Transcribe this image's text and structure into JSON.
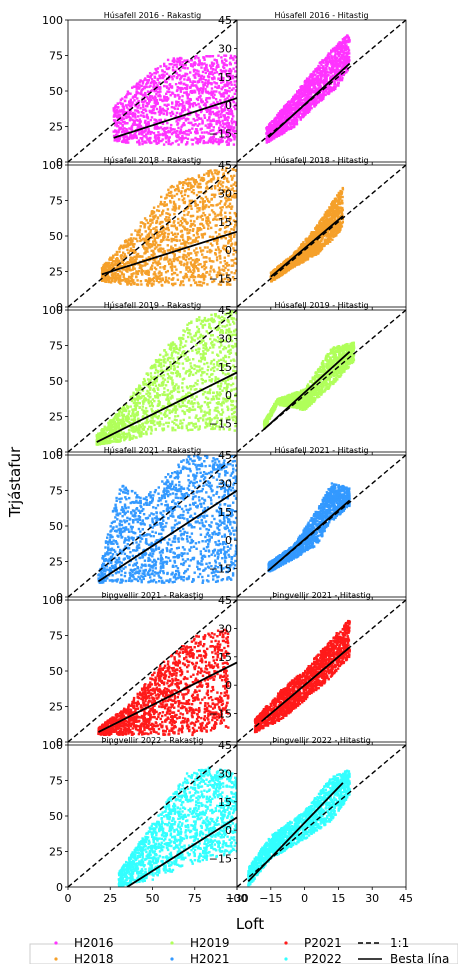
{
  "figure": {
    "ylabel": "Trjástafur",
    "xlabel": "Loft"
  },
  "legend": {
    "entries": [
      {
        "label": "H2016",
        "color": "#ff33ff",
        "kind": "dot"
      },
      {
        "label": "H2018",
        "color": "#f5a02a",
        "kind": "dot"
      },
      {
        "label": "H2019",
        "color": "#b0ff5a",
        "kind": "dot"
      },
      {
        "label": "H2021",
        "color": "#3399ff",
        "kind": "dot"
      },
      {
        "label": "P2021",
        "color": "#ff1a1a",
        "kind": "dot"
      },
      {
        "label": "P2022",
        "color": "#33ffff",
        "kind": "dot"
      },
      {
        "label": "1:1",
        "color": "#000000",
        "kind": "dashed"
      },
      {
        "label": "Besta lína",
        "color": "#000000",
        "kind": "solid"
      }
    ]
  },
  "chart_data": [
    {
      "type": "scatter",
      "title": "Húsafell 2016 - Rakastig",
      "color": "#ff33ff",
      "xlim": [
        0,
        100
      ],
      "ylim": [
        0,
        100
      ],
      "xticks": [
        0,
        25,
        50,
        75,
        100
      ],
      "yticks": [
        0,
        25,
        50,
        75,
        100
      ],
      "fit_line": {
        "x": [
          27,
          100
        ],
        "y": [
          17,
          45
        ]
      },
      "identity_line": true,
      "cloud": {
        "x_range": [
          27,
          100
        ],
        "y_band": [
          [
            27,
            15,
            40
          ],
          [
            40,
            12,
            55
          ],
          [
            60,
            12,
            73
          ],
          [
            80,
            12,
            75
          ],
          [
            100,
            12,
            75
          ]
        ]
      }
    },
    {
      "type": "scatter",
      "title": "Húsafell 2016 - Hitastig",
      "color": "#ff33ff",
      "xlim": [
        -30,
        45
      ],
      "ylim": [
        -30,
        45
      ],
      "xticks": [
        -30,
        -15,
        0,
        15,
        30,
        45
      ],
      "yticks": [
        -15,
        0,
        15,
        30,
        45
      ],
      "fit_line": {
        "x": [
          -16,
          20
        ],
        "y": [
          -17,
          22
        ]
      },
      "identity_line": true,
      "cloud": {
        "x_range": [
          -17,
          20
        ],
        "y_band": [
          [
            -17,
            -20,
            -12
          ],
          [
            -5,
            -12,
            5
          ],
          [
            5,
            0,
            20
          ],
          [
            15,
            10,
            33
          ],
          [
            20,
            20,
            38
          ]
        ]
      }
    },
    {
      "type": "scatter",
      "title": "Húsafell 2018 - Rakastig",
      "color": "#f5a02a",
      "xlim": [
        0,
        100
      ],
      "ylim": [
        0,
        100
      ],
      "xticks": [
        0,
        25,
        50,
        75,
        100
      ],
      "yticks": [
        0,
        25,
        50,
        75,
        100
      ],
      "fit_line": {
        "x": [
          20,
          100
        ],
        "y": [
          23,
          53
        ]
      },
      "identity_line": true,
      "cloud": {
        "x_range": [
          20,
          100
        ],
        "y_band": [
          [
            20,
            18,
            28
          ],
          [
            40,
            15,
            55
          ],
          [
            60,
            15,
            85
          ],
          [
            80,
            15,
            95
          ],
          [
            100,
            15,
            100
          ]
        ]
      }
    },
    {
      "type": "scatter",
      "title": "Húsafell 2018 - Hitastig",
      "color": "#f5a02a",
      "xlim": [
        -30,
        45
      ],
      "ylim": [
        -30,
        45
      ],
      "xticks": [
        -30,
        -15,
        0,
        15,
        30,
        45
      ],
      "yticks": [
        -15,
        0,
        15,
        30,
        45
      ],
      "fit_line": {
        "x": [
          -15,
          17
        ],
        "y": [
          -14,
          18
        ]
      },
      "identity_line": true,
      "cloud": {
        "x_range": [
          -15,
          17
        ],
        "y_band": [
          [
            -15,
            -17,
            -12
          ],
          [
            -5,
            -9,
            -2
          ],
          [
            5,
            -3,
            12
          ],
          [
            12,
            5,
            25
          ],
          [
            17,
            12,
            33
          ]
        ]
      }
    },
    {
      "type": "scatter",
      "title": "Húsafell 2019 - Rakastig",
      "color": "#b0ff5a",
      "xlim": [
        0,
        100
      ],
      "ylim": [
        0,
        100
      ],
      "xticks": [
        0,
        25,
        50,
        75,
        100
      ],
      "yticks": [
        0,
        25,
        50,
        75,
        100
      ],
      "fit_line": {
        "x": [
          17,
          100
        ],
        "y": [
          7,
          56
        ]
      },
      "identity_line": true,
      "cloud": {
        "x_range": [
          17,
          100
        ],
        "y_band": [
          [
            17,
            5,
            12
          ],
          [
            35,
            8,
            35
          ],
          [
            55,
            15,
            70
          ],
          [
            75,
            15,
            95
          ],
          [
            100,
            15,
            100
          ]
        ]
      }
    },
    {
      "type": "scatter",
      "title": "Húsafell 2019 - Hitastig",
      "color": "#b0ff5a",
      "xlim": [
        -30,
        45
      ],
      "ylim": [
        -30,
        45
      ],
      "xticks": [
        -30,
        -15,
        0,
        15,
        30,
        45
      ],
      "yticks": [
        -15,
        0,
        15,
        30,
        45
      ],
      "fit_line": {
        "x": [
          -18,
          20
        ],
        "y": [
          -18,
          23
        ]
      },
      "identity_line": true,
      "cloud": {
        "x_range": [
          -18,
          22
        ],
        "y_band": [
          [
            -18,
            -18,
            -14
          ],
          [
            -12,
            -5,
            -2
          ],
          [
            0,
            -8,
            3
          ],
          [
            12,
            5,
            25
          ],
          [
            22,
            18,
            28
          ]
        ]
      }
    },
    {
      "type": "scatter",
      "title": "Húsafell 2021 - Rakastig",
      "color": "#3399ff",
      "xlim": [
        0,
        100
      ],
      "ylim": [
        0,
        100
      ],
      "xticks": [
        0,
        25,
        50,
        75,
        100
      ],
      "yticks": [
        0,
        25,
        50,
        75,
        100
      ],
      "fit_line": {
        "x": [
          18,
          100
        ],
        "y": [
          11,
          75
        ]
      },
      "identity_line": true,
      "cloud": {
        "x_range": [
          18,
          100
        ],
        "y_band": [
          [
            18,
            10,
            15
          ],
          [
            30,
            10,
            80
          ],
          [
            45,
            10,
            70
          ],
          [
            70,
            10,
            100
          ],
          [
            100,
            10,
            100
          ]
        ]
      }
    },
    {
      "type": "scatter",
      "title": "Húsafell 2021 - Hitastig",
      "color": "#3399ff",
      "xlim": [
        -30,
        45
      ],
      "ylim": [
        -30,
        45
      ],
      "xticks": [
        -30,
        -15,
        0,
        15,
        30,
        45
      ],
      "yticks": [
        -15,
        0,
        15,
        30,
        45
      ],
      "fit_line": {
        "x": [
          -16,
          20
        ],
        "y": [
          -16,
          21
        ]
      },
      "identity_line": true,
      "cloud": {
        "x_range": [
          -16,
          20
        ],
        "y_band": [
          [
            -16,
            -17,
            -12
          ],
          [
            -5,
            -10,
            -3
          ],
          [
            5,
            -3,
            15
          ],
          [
            12,
            10,
            30
          ],
          [
            20,
            18,
            28
          ]
        ]
      }
    },
    {
      "type": "scatter",
      "title": "Þingvellir 2021 - Rakastig",
      "color": "#ff1a1a",
      "xlim": [
        0,
        100
      ],
      "ylim": [
        0,
        100
      ],
      "xticks": [
        0,
        25,
        50,
        75,
        100
      ],
      "yticks": [
        0,
        25,
        50,
        75,
        100
      ],
      "fit_line": {
        "x": [
          18,
          100
        ],
        "y": [
          7,
          56
        ]
      },
      "identity_line": true,
      "cloud": {
        "x_range": [
          18,
          95
        ],
        "y_band": [
          [
            18,
            5,
            10
          ],
          [
            35,
            5,
            25
          ],
          [
            55,
            5,
            55
          ],
          [
            75,
            5,
            75
          ],
          [
            95,
            10,
            80
          ]
        ]
      }
    },
    {
      "type": "scatter",
      "title": "Þingvellir 2021 - Hitastig",
      "color": "#ff1a1a",
      "xlim": [
        -30,
        45
      ],
      "ylim": [
        -30,
        45
      ],
      "xticks": [
        -30,
        -15,
        0,
        15,
        30,
        45
      ],
      "yticks": [
        -15,
        0,
        15,
        30,
        45
      ],
      "fit_line": {
        "x": [
          -18,
          20
        ],
        "y": [
          -18,
          20
        ]
      },
      "identity_line": true,
      "cloud": {
        "x_range": [
          -22,
          20
        ],
        "y_band": [
          [
            -22,
            -25,
            -18
          ],
          [
            -10,
            -18,
            -2
          ],
          [
            0,
            -8,
            8
          ],
          [
            10,
            2,
            22
          ],
          [
            20,
            15,
            35
          ]
        ]
      }
    },
    {
      "type": "scatter",
      "title": "Þingvellir 2022 - Rakastig",
      "color": "#33ffff",
      "xlim": [
        0,
        100
      ],
      "ylim": [
        0,
        100
      ],
      "xticks": [
        0,
        25,
        50,
        75,
        100
      ],
      "yticks": [
        0,
        25,
        50,
        75,
        100
      ],
      "fit_line": {
        "x": [
          35,
          100
        ],
        "y": [
          0,
          49
        ]
      },
      "identity_line": true,
      "cloud": {
        "x_range": [
          30,
          100
        ],
        "y_band": [
          [
            30,
            0,
            10
          ],
          [
            50,
            5,
            45
          ],
          [
            70,
            15,
            80
          ],
          [
            85,
            20,
            85
          ],
          [
            100,
            25,
            80
          ]
        ]
      }
    },
    {
      "type": "scatter",
      "title": "Þingvellir 2022 - Hitastig",
      "color": "#33ffff",
      "xlim": [
        -30,
        45
      ],
      "ylim": [
        -30,
        45
      ],
      "xticks": [
        -30,
        -15,
        0,
        15,
        30,
        45
      ],
      "yticks": [
        -15,
        0,
        15,
        30,
        45
      ],
      "fit_line": {
        "x": [
          -25,
          17
        ],
        "y": [
          -27,
          25
        ]
      },
      "identity_line": true,
      "cloud": {
        "x_range": [
          -25,
          20
        ],
        "y_band": [
          [
            -25,
            -30,
            -20
          ],
          [
            -15,
            -15,
            -3
          ],
          [
            0,
            -5,
            10
          ],
          [
            12,
            5,
            28
          ],
          [
            20,
            18,
            32
          ]
        ]
      }
    }
  ]
}
